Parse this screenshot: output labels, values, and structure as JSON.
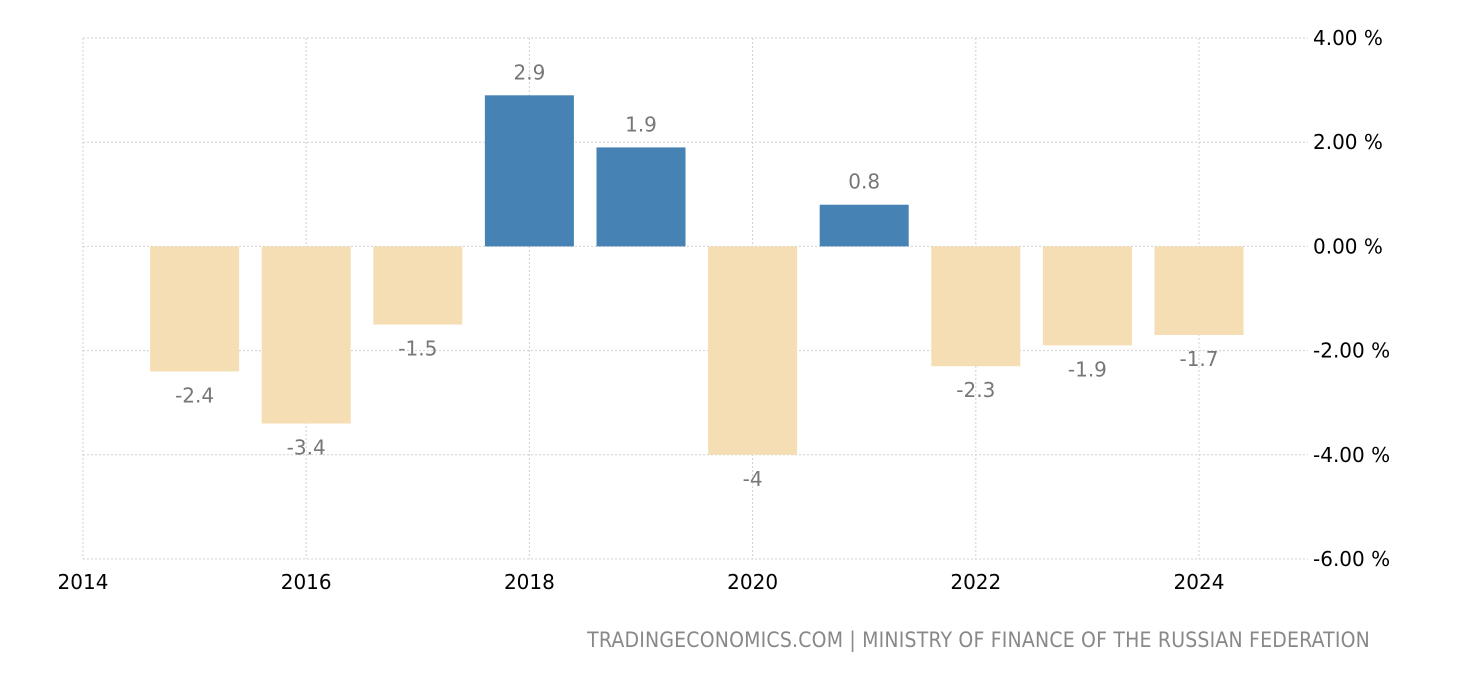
{
  "chart_data": {
    "type": "bar",
    "x": [
      2015,
      2016,
      2017,
      2018,
      2019,
      2020,
      2021,
      2022,
      2023,
      2024
    ],
    "values": [
      -2.4,
      -3.4,
      -1.5,
      2.9,
      1.9,
      -4,
      0.8,
      -2.3,
      -1.9,
      -1.7
    ],
    "data_labels": [
      "-2.4",
      "-3.4",
      "-1.5",
      "2.9",
      "1.9",
      "-4",
      "0.8",
      "-2.3",
      "-1.9",
      "-1.7"
    ],
    "xlim": [
      2014,
      2025
    ],
    "ylim": [
      -6,
      4
    ],
    "x_ticks": [
      "2014",
      "2016",
      "2018",
      "2020",
      "2022",
      "2024"
    ],
    "y_ticks": [
      "4.00 %",
      "2.00 %",
      "0.00 %",
      "-2.00 %",
      "-4.00 %",
      "-6.00 %"
    ],
    "y_axis_position": "right",
    "grid": true,
    "colors": {
      "positive": "#4682b4",
      "negative": "#f5deb3"
    }
  },
  "source": "TRADINGECONOMICS.COM | MINISTRY OF FINANCE OF THE RUSSIAN FEDERATION"
}
